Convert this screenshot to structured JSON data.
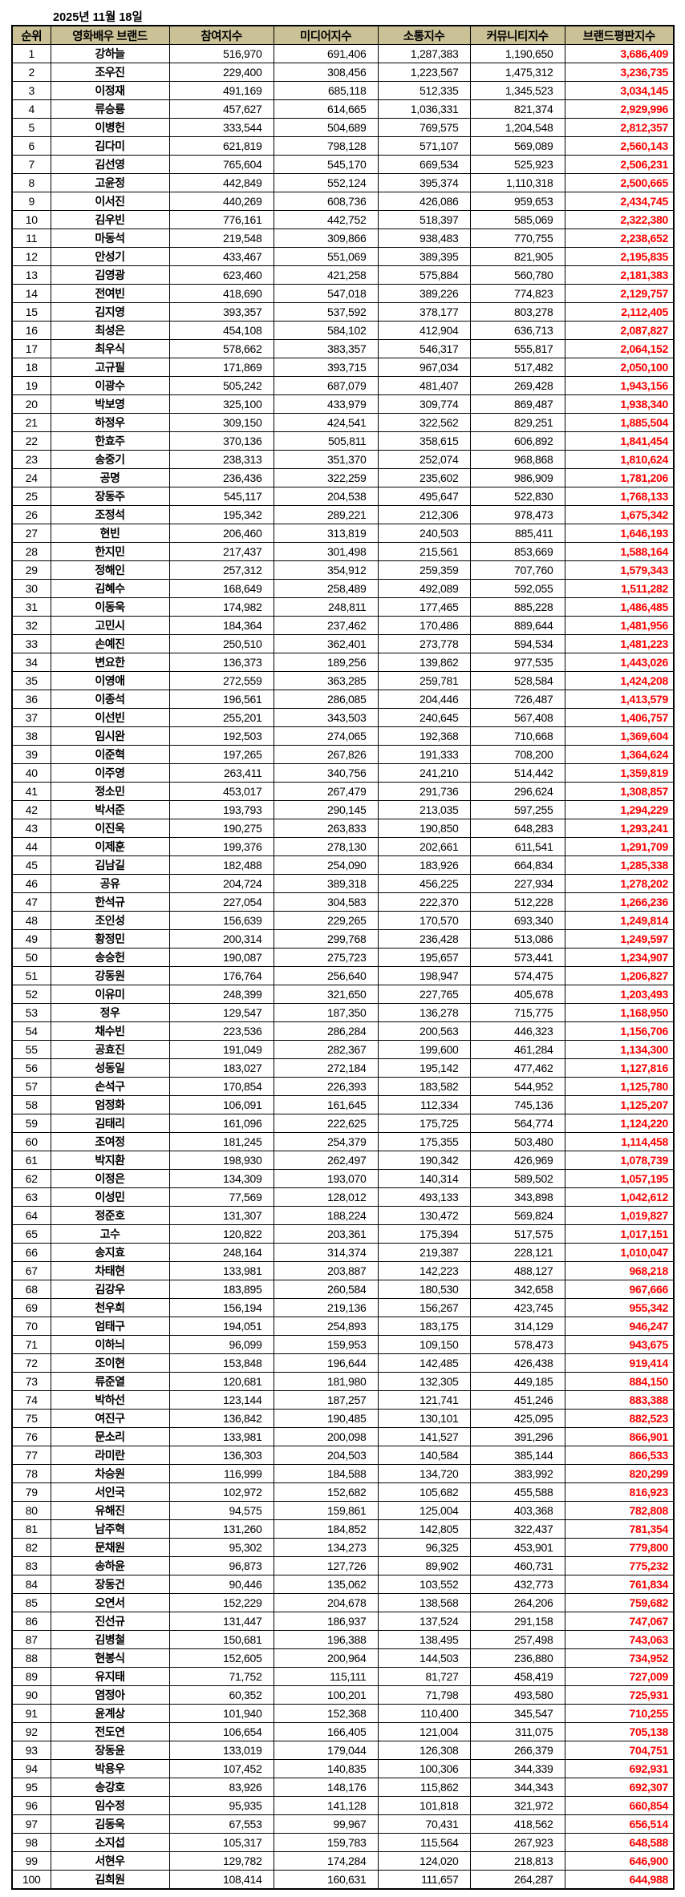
{
  "date_label": "2025년 11월 18일",
  "colors": {
    "header_bg": "#cac196",
    "total_color": "#ff0000",
    "border": "#000000"
  },
  "chart_data": {
    "type": "table",
    "columns": [
      "순위",
      "영화배우 브랜드",
      "참여지수",
      "미디어지수",
      "소통지수",
      "커뮤니티지수",
      "브랜드평판지수"
    ],
    "rows": [
      [
        "1",
        "강하늘",
        "516,970",
        "691,406",
        "1,287,383",
        "1,190,650",
        "3,686,409"
      ],
      [
        "2",
        "조우진",
        "229,400",
        "308,456",
        "1,223,567",
        "1,475,312",
        "3,236,735"
      ],
      [
        "3",
        "이정재",
        "491,169",
        "685,118",
        "512,335",
        "1,345,523",
        "3,034,145"
      ],
      [
        "4",
        "류승룡",
        "457,627",
        "614,665",
        "1,036,331",
        "821,374",
        "2,929,996"
      ],
      [
        "5",
        "이병헌",
        "333,544",
        "504,689",
        "769,575",
        "1,204,548",
        "2,812,357"
      ],
      [
        "6",
        "김다미",
        "621,819",
        "798,128",
        "571,107",
        "569,089",
        "2,560,143"
      ],
      [
        "7",
        "김선영",
        "765,604",
        "545,170",
        "669,534",
        "525,923",
        "2,506,231"
      ],
      [
        "8",
        "고윤정",
        "442,849",
        "552,124",
        "395,374",
        "1,110,318",
        "2,500,665"
      ],
      [
        "9",
        "이서진",
        "440,269",
        "608,736",
        "426,086",
        "959,653",
        "2,434,745"
      ],
      [
        "10",
        "김우빈",
        "776,161",
        "442,752",
        "518,397",
        "585,069",
        "2,322,380"
      ],
      [
        "11",
        "마동석",
        "219,548",
        "309,866",
        "938,483",
        "770,755",
        "2,238,652"
      ],
      [
        "12",
        "안성기",
        "433,467",
        "551,069",
        "389,395",
        "821,905",
        "2,195,835"
      ],
      [
        "13",
        "김영광",
        "623,460",
        "421,258",
        "575,884",
        "560,780",
        "2,181,383"
      ],
      [
        "14",
        "전여빈",
        "418,690",
        "547,018",
        "389,226",
        "774,823",
        "2,129,757"
      ],
      [
        "15",
        "김지영",
        "393,357",
        "537,592",
        "378,177",
        "803,278",
        "2,112,405"
      ],
      [
        "16",
        "최성은",
        "454,108",
        "584,102",
        "412,904",
        "636,713",
        "2,087,827"
      ],
      [
        "17",
        "최우식",
        "578,662",
        "383,357",
        "546,317",
        "555,817",
        "2,064,152"
      ],
      [
        "18",
        "고규필",
        "171,869",
        "393,715",
        "967,034",
        "517,482",
        "2,050,100"
      ],
      [
        "19",
        "이광수",
        "505,242",
        "687,079",
        "481,407",
        "269,428",
        "1,943,156"
      ],
      [
        "20",
        "박보영",
        "325,100",
        "433,979",
        "309,774",
        "869,487",
        "1,938,340"
      ],
      [
        "21",
        "하정우",
        "309,150",
        "424,541",
        "322,562",
        "829,251",
        "1,885,504"
      ],
      [
        "22",
        "한효주",
        "370,136",
        "505,811",
        "358,615",
        "606,892",
        "1,841,454"
      ],
      [
        "23",
        "송중기",
        "238,313",
        "351,370",
        "252,074",
        "968,868",
        "1,810,624"
      ],
      [
        "24",
        "공명",
        "236,436",
        "322,259",
        "235,602",
        "986,909",
        "1,781,206"
      ],
      [
        "25",
        "장동주",
        "545,117",
        "204,538",
        "495,647",
        "522,830",
        "1,768,133"
      ],
      [
        "26",
        "조정석",
        "195,342",
        "289,221",
        "212,306",
        "978,473",
        "1,675,342"
      ],
      [
        "27",
        "현빈",
        "206,460",
        "313,819",
        "240,503",
        "885,411",
        "1,646,193"
      ],
      [
        "28",
        "한지민",
        "217,437",
        "301,498",
        "215,561",
        "853,669",
        "1,588,164"
      ],
      [
        "29",
        "정해인",
        "257,312",
        "354,912",
        "259,359",
        "707,760",
        "1,579,343"
      ],
      [
        "30",
        "김혜수",
        "168,649",
        "258,489",
        "492,089",
        "592,055",
        "1,511,282"
      ],
      [
        "31",
        "이동욱",
        "174,982",
        "248,811",
        "177,465",
        "885,228",
        "1,486,485"
      ],
      [
        "32",
        "고민시",
        "184,364",
        "237,462",
        "170,486",
        "889,644",
        "1,481,956"
      ],
      [
        "33",
        "손예진",
        "250,510",
        "362,401",
        "273,778",
        "594,534",
        "1,481,223"
      ],
      [
        "34",
        "변요한",
        "136,373",
        "189,256",
        "139,862",
        "977,535",
        "1,443,026"
      ],
      [
        "35",
        "이영애",
        "272,559",
        "363,285",
        "259,781",
        "528,584",
        "1,424,208"
      ],
      [
        "36",
        "이종석",
        "196,561",
        "286,085",
        "204,446",
        "726,487",
        "1,413,579"
      ],
      [
        "37",
        "이선빈",
        "255,201",
        "343,503",
        "240,645",
        "567,408",
        "1,406,757"
      ],
      [
        "38",
        "임시완",
        "192,503",
        "274,065",
        "192,368",
        "710,668",
        "1,369,604"
      ],
      [
        "39",
        "이준혁",
        "197,265",
        "267,826",
        "191,333",
        "708,200",
        "1,364,624"
      ],
      [
        "40",
        "이주영",
        "263,411",
        "340,756",
        "241,210",
        "514,442",
        "1,359,819"
      ],
      [
        "41",
        "정소민",
        "453,017",
        "267,479",
        "291,736",
        "296,624",
        "1,308,857"
      ],
      [
        "42",
        "박서준",
        "193,793",
        "290,145",
        "213,035",
        "597,255",
        "1,294,229"
      ],
      [
        "43",
        "이진욱",
        "190,275",
        "263,833",
        "190,850",
        "648,283",
        "1,293,241"
      ],
      [
        "44",
        "이제훈",
        "199,376",
        "278,130",
        "202,661",
        "611,541",
        "1,291,709"
      ],
      [
        "45",
        "김남길",
        "182,488",
        "254,090",
        "183,926",
        "664,834",
        "1,285,338"
      ],
      [
        "46",
        "공유",
        "204,724",
        "389,318",
        "456,225",
        "227,934",
        "1,278,202"
      ],
      [
        "47",
        "한석규",
        "227,054",
        "304,583",
        "222,370",
        "512,228",
        "1,266,236"
      ],
      [
        "48",
        "조인성",
        "156,639",
        "229,265",
        "170,570",
        "693,340",
        "1,249,814"
      ],
      [
        "49",
        "황정민",
        "200,314",
        "299,768",
        "236,428",
        "513,086",
        "1,249,597"
      ],
      [
        "50",
        "송승헌",
        "190,087",
        "275,723",
        "195,657",
        "573,441",
        "1,234,907"
      ],
      [
        "51",
        "강동원",
        "176,764",
        "256,640",
        "198,947",
        "574,475",
        "1,206,827"
      ],
      [
        "52",
        "이유미",
        "248,399",
        "321,650",
        "227,765",
        "405,678",
        "1,203,493"
      ],
      [
        "53",
        "정우",
        "129,547",
        "187,350",
        "136,278",
        "715,775",
        "1,168,950"
      ],
      [
        "54",
        "채수빈",
        "223,536",
        "286,284",
        "200,563",
        "446,323",
        "1,156,706"
      ],
      [
        "55",
        "공효진",
        "191,049",
        "282,367",
        "199,600",
        "461,284",
        "1,134,300"
      ],
      [
        "56",
        "성동일",
        "183,027",
        "272,184",
        "195,142",
        "477,462",
        "1,127,816"
      ],
      [
        "57",
        "손석구",
        "170,854",
        "226,393",
        "183,582",
        "544,952",
        "1,125,780"
      ],
      [
        "58",
        "엄정화",
        "106,091",
        "161,645",
        "112,334",
        "745,136",
        "1,125,207"
      ],
      [
        "59",
        "김태리",
        "161,096",
        "222,625",
        "175,725",
        "564,774",
        "1,124,220"
      ],
      [
        "60",
        "조여정",
        "181,245",
        "254,379",
        "175,355",
        "503,480",
        "1,114,458"
      ],
      [
        "61",
        "박지환",
        "198,930",
        "262,497",
        "190,342",
        "426,969",
        "1,078,739"
      ],
      [
        "62",
        "이정은",
        "134,309",
        "193,070",
        "140,314",
        "589,502",
        "1,057,195"
      ],
      [
        "63",
        "이성민",
        "77,569",
        "128,012",
        "493,133",
        "343,898",
        "1,042,612"
      ],
      [
        "64",
        "정준호",
        "131,307",
        "188,224",
        "130,472",
        "569,824",
        "1,019,827"
      ],
      [
        "65",
        "고수",
        "120,822",
        "203,361",
        "175,394",
        "517,575",
        "1,017,151"
      ],
      [
        "66",
        "송지효",
        "248,164",
        "314,374",
        "219,387",
        "228,121",
        "1,010,047"
      ],
      [
        "67",
        "차태현",
        "133,981",
        "203,887",
        "142,223",
        "488,127",
        "968,218"
      ],
      [
        "68",
        "김강우",
        "183,895",
        "260,584",
        "180,530",
        "342,658",
        "967,666"
      ],
      [
        "69",
        "천우희",
        "156,194",
        "219,136",
        "156,267",
        "423,745",
        "955,342"
      ],
      [
        "70",
        "엄태구",
        "194,051",
        "254,893",
        "183,175",
        "314,129",
        "946,247"
      ],
      [
        "71",
        "이하늬",
        "96,099",
        "159,953",
        "109,150",
        "578,473",
        "943,675"
      ],
      [
        "72",
        "조이현",
        "153,848",
        "196,644",
        "142,485",
        "426,438",
        "919,414"
      ],
      [
        "73",
        "류준열",
        "120,681",
        "181,980",
        "132,305",
        "449,185",
        "884,150"
      ],
      [
        "74",
        "박하선",
        "123,144",
        "187,257",
        "121,741",
        "451,246",
        "883,388"
      ],
      [
        "75",
        "여진구",
        "136,842",
        "190,485",
        "130,101",
        "425,095",
        "882,523"
      ],
      [
        "76",
        "문소리",
        "133,981",
        "200,098",
        "141,527",
        "391,296",
        "866,901"
      ],
      [
        "77",
        "라미란",
        "136,303",
        "204,503",
        "140,584",
        "385,144",
        "866,533"
      ],
      [
        "78",
        "차승원",
        "116,999",
        "184,588",
        "134,720",
        "383,992",
        "820,299"
      ],
      [
        "79",
        "서인국",
        "102,972",
        "152,682",
        "105,682",
        "455,588",
        "816,923"
      ],
      [
        "80",
        "유해진",
        "94,575",
        "159,861",
        "125,004",
        "403,368",
        "782,808"
      ],
      [
        "81",
        "남주혁",
        "131,260",
        "184,852",
        "142,805",
        "322,437",
        "781,354"
      ],
      [
        "82",
        "문채원",
        "95,302",
        "134,273",
        "96,325",
        "453,901",
        "779,800"
      ],
      [
        "83",
        "송하윤",
        "96,873",
        "127,726",
        "89,902",
        "460,731",
        "775,232"
      ],
      [
        "84",
        "장동건",
        "90,446",
        "135,062",
        "103,552",
        "432,773",
        "761,834"
      ],
      [
        "85",
        "오연서",
        "152,229",
        "204,678",
        "138,568",
        "264,206",
        "759,682"
      ],
      [
        "86",
        "진선규",
        "131,447",
        "186,937",
        "137,524",
        "291,158",
        "747,067"
      ],
      [
        "87",
        "김병철",
        "150,681",
        "196,388",
        "138,495",
        "257,498",
        "743,063"
      ],
      [
        "88",
        "현봉식",
        "152,605",
        "200,964",
        "144,503",
        "236,880",
        "734,952"
      ],
      [
        "89",
        "유지태",
        "71,752",
        "115,111",
        "81,727",
        "458,419",
        "727,009"
      ],
      [
        "90",
        "염정아",
        "60,352",
        "100,201",
        "71,798",
        "493,580",
        "725,931"
      ],
      [
        "91",
        "윤계상",
        "101,940",
        "152,368",
        "110,400",
        "345,547",
        "710,255"
      ],
      [
        "92",
        "전도연",
        "106,654",
        "166,405",
        "121,004",
        "311,075",
        "705,138"
      ],
      [
        "93",
        "장동윤",
        "133,019",
        "179,044",
        "126,308",
        "266,379",
        "704,751"
      ],
      [
        "94",
        "박용우",
        "107,452",
        "140,835",
        "100,306",
        "344,339",
        "692,931"
      ],
      [
        "95",
        "송강호",
        "83,926",
        "148,176",
        "115,862",
        "344,343",
        "692,307"
      ],
      [
        "96",
        "임수정",
        "95,935",
        "141,128",
        "101,818",
        "321,972",
        "660,854"
      ],
      [
        "97",
        "김동욱",
        "67,553",
        "99,967",
        "70,431",
        "418,562",
        "656,514"
      ],
      [
        "98",
        "소지섭",
        "105,317",
        "159,783",
        "115,564",
        "267,923",
        "648,588"
      ],
      [
        "99",
        "서현우",
        "129,782",
        "174,284",
        "124,020",
        "218,813",
        "646,900"
      ],
      [
        "100",
        "김희원",
        "108,414",
        "160,631",
        "111,657",
        "264,287",
        "644,988"
      ]
    ]
  }
}
